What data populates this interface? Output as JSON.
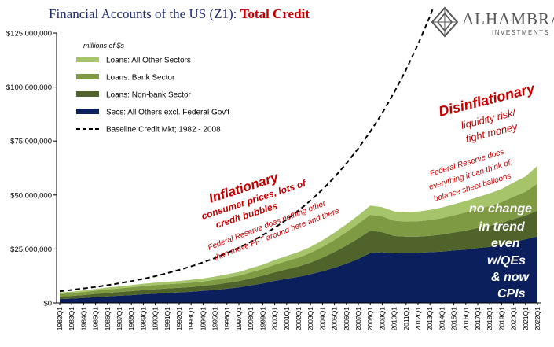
{
  "title": {
    "main": "Financial Accounts of the US (Z1): ",
    "highlight": "Total Credit"
  },
  "logo": {
    "name": "ALHAMBRA",
    "sub": "INVESTMENTS"
  },
  "colors": {
    "all_other_loans": "#a6c46a",
    "bank_loans": "#7e9b43",
    "nonbank_loans": "#50632a",
    "secs": "#0b1f5c",
    "baseline": "#000000",
    "annotation": "#c00000",
    "annotation_white": "#ffffff",
    "title": "#1f2a6b"
  },
  "annotations": {
    "inflationary_title": "Inflationary",
    "inflationary_sub": [
      "consumer prices, lots of",
      "credit bubbles"
    ],
    "fed_nothing": [
      "Federal Reserve does nothing other",
      "than move FFT around here and there"
    ],
    "disinflationary_title": "Disinflationary",
    "disinflationary_sub": [
      "liquidity risk/",
      "tight money"
    ],
    "fed_everything": [
      "Federal Reserve does",
      "everything it can think of;",
      "balance sheet balloons"
    ],
    "no_change": [
      "no change",
      "in trend",
      "even",
      "w/QEs",
      "& now",
      "CPIs"
    ]
  },
  "chart_data": {
    "type": "area",
    "units_note": "millions of $s",
    "ylim": [
      0,
      125000000
    ],
    "yticks": [
      0,
      25000000,
      50000000,
      75000000,
      100000000,
      125000000
    ],
    "ytick_labels": [
      "$0",
      "$25,000,000",
      "$50,000,000",
      "$75,000,000",
      "$100,000,000",
      "$125,000,000"
    ],
    "grid": false,
    "legend_position": "top-left",
    "x": [
      "1982Q1",
      "1983Q1",
      "1984Q1",
      "1985Q1",
      "1986Q1",
      "1987Q1",
      "1988Q1",
      "1989Q1",
      "1990Q1",
      "1991Q1",
      "1992Q1",
      "1993Q1",
      "1994Q1",
      "1995Q1",
      "1996Q1",
      "1997Q1",
      "1998Q1",
      "1999Q1",
      "2000Q1",
      "2001Q1",
      "2002Q1",
      "2003Q1",
      "2004Q1",
      "2005Q1",
      "2006Q1",
      "2007Q1",
      "2008Q1",
      "2009Q1",
      "2010Q1",
      "2011Q1",
      "2012Q1",
      "2013Q1",
      "2014Q1",
      "2015Q1",
      "2016Q1",
      "2017Q1",
      "2018Q1",
      "2019Q1",
      "2020Q1",
      "2021Q1",
      "2022Q1"
    ],
    "series": [
      {
        "name": "Secs: All Others excl. Federal Gov't",
        "role": "secs",
        "values": [
          1.8,
          2.0,
          2.3,
          2.7,
          3.0,
          3.3,
          3.6,
          4.0,
          4.3,
          4.6,
          4.9,
          5.2,
          5.6,
          6.0,
          6.6,
          7.2,
          8.1,
          9.0,
          10.2,
          11.2,
          12.1,
          13.3,
          14.7,
          16.3,
          18.2,
          20.4,
          23.1,
          23.5,
          23.0,
          23.2,
          23.2,
          23.5,
          23.8,
          24.3,
          24.7,
          25.4,
          26.0,
          26.9,
          28.2,
          29.5,
          30.8
        ]
      },
      {
        "name": "Loans: Non-bank Sector",
        "role": "nonbank_loans",
        "values": [
          1.2,
          1.25,
          1.35,
          1.5,
          1.65,
          1.75,
          1.85,
          1.95,
          2.05,
          2.1,
          2.1,
          2.2,
          2.3,
          2.5,
          2.7,
          2.9,
          3.3,
          3.6,
          4.0,
          4.4,
          4.8,
          5.4,
          6.3,
          7.3,
          8.4,
          9.5,
          10.4,
          9.3,
          8.0,
          7.5,
          7.5,
          7.6,
          7.9,
          8.3,
          8.8,
          9.3,
          9.7,
          10.2,
          10.6,
          11.0,
          12.0
        ]
      },
      {
        "name": "Loans: Bank Sector",
        "role": "bank_loans",
        "values": [
          1.2,
          1.3,
          1.4,
          1.5,
          1.6,
          1.7,
          1.8,
          1.9,
          1.95,
          1.95,
          1.95,
          2.0,
          2.05,
          2.2,
          2.35,
          2.5,
          2.8,
          3.1,
          3.5,
          3.8,
          4.1,
          4.5,
          5.0,
          5.6,
          6.2,
          6.8,
          7.3,
          7.3,
          7.1,
          7.0,
          7.1,
          7.3,
          7.6,
          8.0,
          8.4,
          8.8,
          9.2,
          9.6,
          10.4,
          11.0,
          12.5
        ]
      },
      {
        "name": "Loans: All Other Sectors",
        "role": "all_other_loans",
        "values": [
          0.6,
          0.65,
          0.7,
          0.8,
          0.85,
          0.9,
          1.0,
          1.05,
          1.1,
          1.15,
          1.2,
          1.3,
          1.4,
          1.5,
          1.6,
          1.7,
          1.9,
          2.0,
          2.2,
          2.4,
          2.6,
          2.8,
          3.0,
          3.3,
          3.6,
          3.9,
          4.3,
          4.3,
          4.3,
          4.4,
          4.5,
          4.7,
          4.9,
          5.1,
          5.3,
          5.5,
          5.8,
          6.1,
          6.6,
          7.1,
          8.2
        ]
      },
      {
        "name": "Baseline Credit Mkt; 1982 - 2008",
        "role": "baseline",
        "values": [
          5.4,
          6.0,
          6.7,
          7.4,
          8.2,
          9.1,
          10.1,
          11.2,
          12.4,
          13.8,
          15.3,
          16.9,
          18.8,
          20.8,
          23.1,
          25.6,
          28.3,
          31.4,
          34.8,
          38.6,
          42.8,
          47.4,
          52.5,
          58.2,
          64.6,
          71.6,
          79.3,
          87.9,
          97.5,
          108.1,
          119.8,
          132.8,
          147.2,
          163.2,
          180.9,
          200.5,
          222.3,
          246.4,
          273.2,
          302.8,
          335.7
        ]
      }
    ],
    "values_scale": 1000000
  }
}
